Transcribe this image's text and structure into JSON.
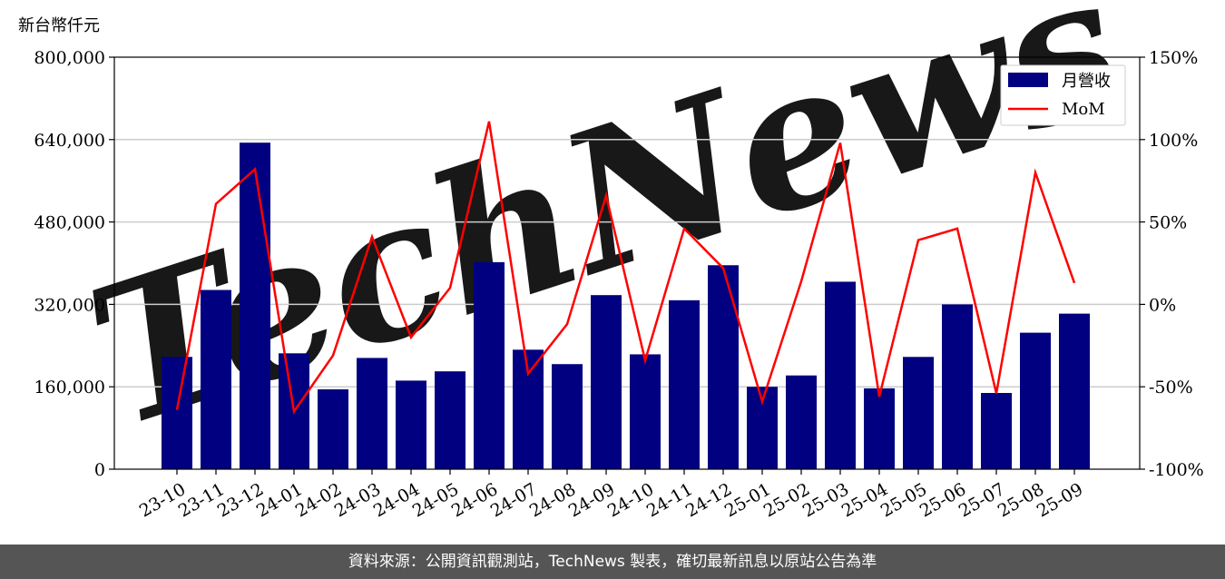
{
  "unit_label": "新台幣仟元",
  "watermark": "TechNews",
  "footer_text": "資料來源：公開資訊觀測站，TechNews 製表，確切最新訊息以原站公告為準",
  "colors": {
    "bar": "#000080",
    "line": "#ff0000",
    "grid": "#cccccc",
    "footer_bg": "#555555",
    "watermark": "#f5c6c6"
  },
  "chart_data": {
    "type": "bar",
    "categories": [
      "23-10",
      "23-11",
      "23-12",
      "24-01",
      "24-02",
      "24-03",
      "24-04",
      "24-05",
      "24-06",
      "24-07",
      "24-08",
      "24-09",
      "24-10",
      "24-11",
      "24-12",
      "25-01",
      "25-02",
      "25-03",
      "25-04",
      "25-05",
      "25-06",
      "25-07",
      "25-08",
      "25-09"
    ],
    "series": [
      {
        "name": "月營收",
        "type": "bar",
        "axis": "left",
        "values": [
          218000,
          348000,
          634000,
          225000,
          155000,
          216000,
          172000,
          190000,
          402000,
          232000,
          204000,
          338000,
          223000,
          328000,
          396000,
          160000,
          182000,
          364000,
          157000,
          218000,
          320000,
          148000,
          265000,
          302000
        ]
      },
      {
        "name": "MoM",
        "type": "line",
        "axis": "right",
        "unit": "%",
        "values": [
          -64,
          61,
          82,
          -65,
          -31,
          41,
          -20,
          10,
          111,
          -42,
          -12,
          66,
          -34,
          46,
          22,
          -59,
          14,
          98,
          -56,
          39,
          46,
          -54,
          80,
          13
        ]
      }
    ],
    "y_left": {
      "ylim": [
        0,
        800000
      ],
      "ticks": [
        "0",
        "160,000",
        "320,000",
        "480,000",
        "640,000",
        "800,000"
      ],
      "tick_values": [
        0,
        160000,
        320000,
        480000,
        640000,
        800000
      ]
    },
    "y_right": {
      "ylim": [
        -100,
        150
      ],
      "ticks": [
        "-100%",
        "-50%",
        "0%",
        "50%",
        "100%",
        "150%"
      ],
      "tick_values": [
        -100,
        -50,
        0,
        50,
        100,
        150
      ]
    },
    "grid": true,
    "legend_placement": "top-right"
  }
}
